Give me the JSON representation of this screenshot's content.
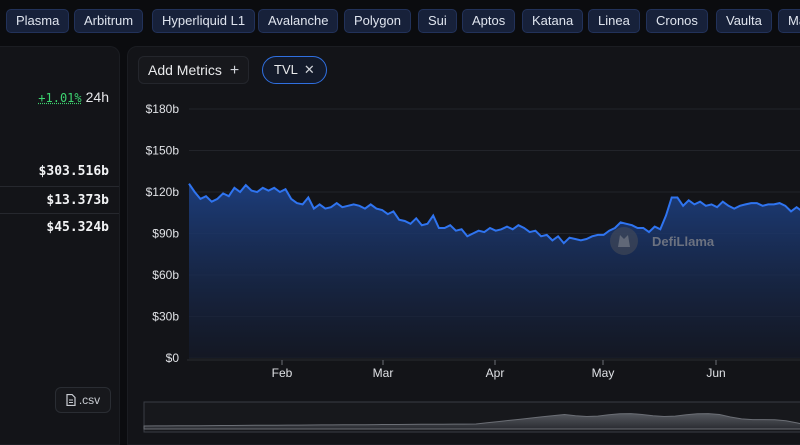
{
  "chains": [
    "Plasma",
    "Arbitrum",
    "Hyperliquid L1",
    "Avalanche",
    "Polygon",
    "Sui",
    "Aptos",
    "Katana",
    "Linea",
    "Cronos",
    "Vaulta",
    "Ma"
  ],
  "summary": {
    "change_pct": "+1.01%",
    "change_period": "24h",
    "stats": [
      "$303.516b",
      "$13.373b",
      "$45.324b"
    ]
  },
  "csv_label": ".csv",
  "toolbar": {
    "add_metrics_label": "Add Metrics",
    "metric_chip": "TVL"
  },
  "watermark": "DefiLlama",
  "colors": {
    "accent": "#2f74f0",
    "positive": "#3cd370",
    "pill_bg": "#17213a"
  },
  "chart_data": {
    "type": "area",
    "series": [
      {
        "values": [
          126,
          120,
          115,
          117,
          113,
          115,
          119,
          117,
          123,
          120,
          125,
          121,
          120,
          123,
          121,
          123,
          120,
          122,
          115,
          112,
          111,
          116,
          108,
          111,
          108,
          109,
          112,
          109,
          110,
          111,
          110,
          108,
          111,
          108,
          107,
          104,
          106,
          100,
          99,
          97,
          101,
          96,
          97,
          103,
          94,
          94,
          96,
          92,
          93,
          88,
          90,
          92,
          91,
          94,
          92,
          93,
          95,
          93,
          96,
          94,
          91,
          92,
          88,
          89,
          85,
          88,
          83,
          87,
          86,
          85,
          86,
          88,
          89,
          89,
          92,
          94,
          98,
          97,
          96,
          94,
          94,
          91,
          95,
          93,
          103,
          116,
          116,
          110,
          114,
          111,
          113,
          110,
          111,
          109,
          113,
          110,
          108,
          110,
          111,
          112,
          112,
          110,
          111,
          111,
          112,
          110,
          106,
          109,
          106,
          104
        ]
      }
    ],
    "x_ticks": [
      "Feb",
      "Mar",
      "Apr",
      "May",
      "Jun"
    ],
    "y_ticks": [
      "$0",
      "$30b",
      "$60b",
      "$90b",
      "$120b",
      "$150b",
      "$180b"
    ],
    "ylim": [
      0,
      180
    ],
    "grid": true
  }
}
